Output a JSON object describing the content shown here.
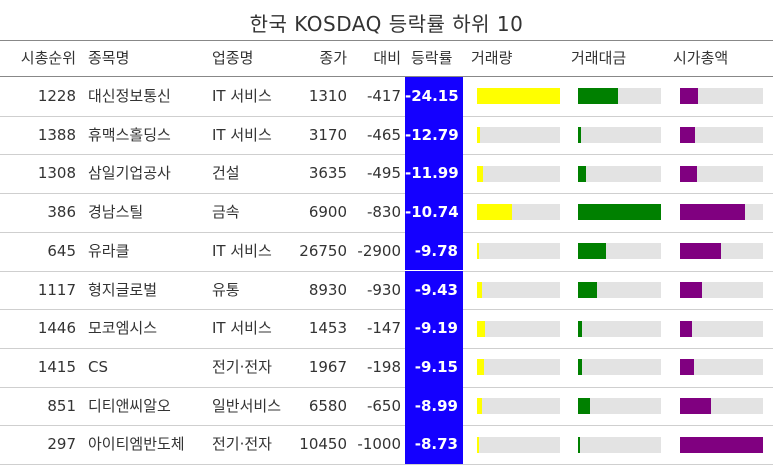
{
  "title": "한국 KOSDAQ 등락률 하위 10",
  "headers": {
    "rank": "시총순위",
    "name": "종목명",
    "sector": "업종명",
    "close": "종가",
    "change": "대비",
    "pct": "등락률",
    "volume": "거래량",
    "amount": "거래대금",
    "mcap": "시가총액"
  },
  "colors": {
    "pct_bg": "#1400ff",
    "volume_bar": "#ffff00",
    "amount_bar": "#008000",
    "mcap_bar": "#800080",
    "bar_track": "#e3e3e3"
  },
  "chart_data": {
    "type": "table",
    "bar_columns_scaled_to_max": true,
    "rows": [
      {
        "rank": "1228",
        "name": "대신정보통신",
        "sector": "IT 서비스",
        "close": "1310",
        "change": "-417",
        "pct": "-24.15",
        "volume": 1.0,
        "amount": 0.48,
        "mcap": 0.22
      },
      {
        "rank": "1388",
        "name": "휴맥스홀딩스",
        "sector": "IT 서비스",
        "close": "3170",
        "change": "-465",
        "pct": "-12.79",
        "volume": 0.04,
        "amount": 0.04,
        "mcap": 0.18
      },
      {
        "rank": "1308",
        "name": "삼일기업공사",
        "sector": "건설",
        "close": "3635",
        "change": "-495",
        "pct": "-11.99",
        "volume": 0.07,
        "amount": 0.1,
        "mcap": 0.2
      },
      {
        "rank": "386",
        "name": "경남스틸",
        "sector": "금속",
        "close": "6900",
        "change": "-830",
        "pct": "-10.74",
        "volume": 0.42,
        "amount": 1.0,
        "mcap": 0.78
      },
      {
        "rank": "645",
        "name": "유라클",
        "sector": "IT 서비스",
        "close": "26750",
        "change": "-2900",
        "pct": "-9.78",
        "volume": 0.03,
        "amount": 0.34,
        "mcap": 0.49
      },
      {
        "rank": "1117",
        "name": "형지글로벌",
        "sector": "유통",
        "close": "8930",
        "change": "-930",
        "pct": "-9.43",
        "volume": 0.06,
        "amount": 0.23,
        "mcap": 0.26
      },
      {
        "rank": "1446",
        "name": "모코엠시스",
        "sector": "IT 서비스",
        "close": "1453",
        "change": "-147",
        "pct": "-9.19",
        "volume": 0.1,
        "amount": 0.05,
        "mcap": 0.15
      },
      {
        "rank": "1415",
        "name": "CS",
        "sector": "전기·전자",
        "close": "1967",
        "change": "-198",
        "pct": "-9.15",
        "volume": 0.09,
        "amount": 0.05,
        "mcap": 0.17
      },
      {
        "rank": "851",
        "name": "디티앤씨알오",
        "sector": "일반서비스",
        "close": "6580",
        "change": "-650",
        "pct": "-8.99",
        "volume": 0.06,
        "amount": 0.14,
        "mcap": 0.37
      },
      {
        "rank": "297",
        "name": "아이티엠반도체",
        "sector": "전기·전자",
        "close": "10450",
        "change": "-1000",
        "pct": "-8.73",
        "volume": 0.02,
        "amount": 0.02,
        "mcap": 1.0
      }
    ]
  }
}
